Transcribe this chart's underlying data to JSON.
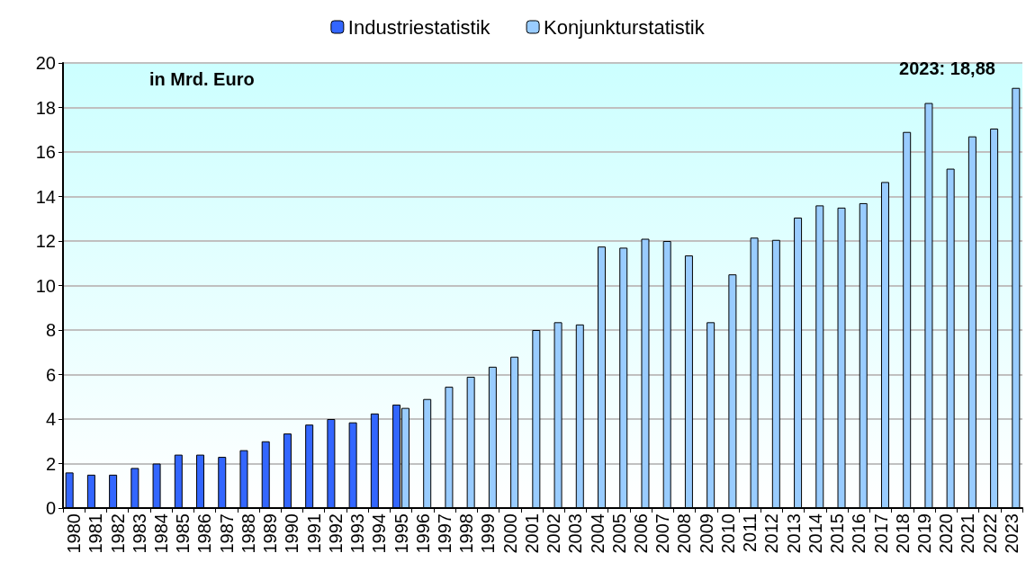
{
  "chart_data": {
    "type": "bar",
    "categories": [
      "1980",
      "1981",
      "1982",
      "1983",
      "1984",
      "1985",
      "1986",
      "1987",
      "1988",
      "1989",
      "1990",
      "1991",
      "1992",
      "1993",
      "1994",
      "1995",
      "1996",
      "1997",
      "1998",
      "1999",
      "2000",
      "2001",
      "2002",
      "2003",
      "2004",
      "2005",
      "2006",
      "2007",
      "2008",
      "2009",
      "2010",
      "2011",
      "2012",
      "2013",
      "2014",
      "2015",
      "2016",
      "2017",
      "2018",
      "2019",
      "2020",
      "2021",
      "2022",
      "2023"
    ],
    "series": [
      {
        "name": "Industriestatistik",
        "color": "#3366ff",
        "values": [
          1.6,
          1.5,
          1.5,
          1.8,
          2.0,
          2.4,
          2.4,
          2.3,
          2.6,
          3.0,
          3.35,
          3.75,
          4.0,
          3.85,
          4.25,
          4.65,
          null,
          null,
          null,
          null,
          null,
          null,
          null,
          null,
          null,
          null,
          null,
          null,
          null,
          null,
          null,
          null,
          null,
          null,
          null,
          null,
          null,
          null,
          null,
          null,
          null,
          null,
          null,
          null
        ]
      },
      {
        "name": "Konjunkturstatistik",
        "color": "#99ccff",
        "values": [
          null,
          null,
          null,
          null,
          null,
          null,
          null,
          null,
          null,
          null,
          null,
          null,
          null,
          null,
          null,
          4.5,
          4.9,
          5.45,
          5.9,
          6.35,
          6.8,
          8.0,
          8.35,
          8.25,
          11.75,
          11.7,
          12.1,
          12.0,
          11.35,
          8.35,
          10.5,
          12.15,
          12.05,
          13.05,
          13.6,
          13.5,
          13.7,
          14.65,
          16.9,
          18.2,
          15.25,
          16.7,
          17.05,
          18.88
        ]
      }
    ],
    "ylim": [
      0,
      20
    ],
    "yticks": [
      0,
      2,
      4,
      6,
      8,
      10,
      12,
      14,
      16,
      18,
      20
    ],
    "grid": "y",
    "legend": "top",
    "annotations": [
      "in Mrd. Euro",
      {
        "text": "2023: 18,88",
        "x": "2023",
        "y": 18.88
      }
    ]
  }
}
